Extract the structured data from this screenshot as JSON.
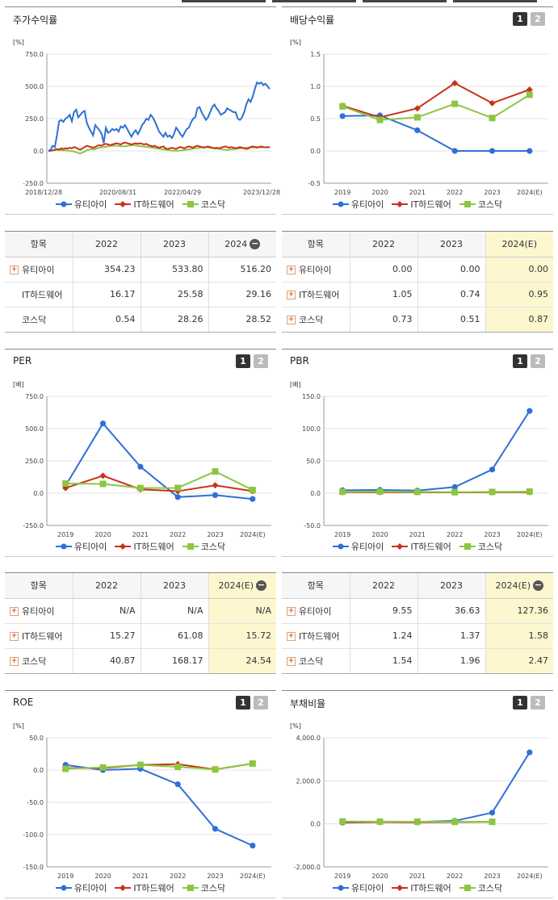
{
  "colors": {
    "series0": "#2f6fd8",
    "series1": "#c8321a",
    "series2": "#8cc63f"
  },
  "legend": [
    "유티아이",
    "IT하드웨어",
    "코스닥"
  ],
  "buttons": {
    "b1": "1",
    "b2": "2"
  },
  "panels": [
    {
      "id": "stock",
      "title": "주가수익률",
      "unit": "[%]",
      "has_buttons": false
    },
    {
      "id": "div",
      "title": "배당수익률",
      "unit": "[%]",
      "has_buttons": true
    },
    {
      "id": "per",
      "title": "PER",
      "unit": "[배]",
      "has_buttons": true
    },
    {
      "id": "pbr",
      "title": "PBR",
      "unit": "[배]",
      "has_buttons": true
    },
    {
      "id": "roe",
      "title": "ROE",
      "unit": "[%]",
      "has_buttons": true
    },
    {
      "id": "debt",
      "title": "부채비율",
      "unit": "[%]",
      "has_buttons": true
    }
  ],
  "chart_data": [
    {
      "id": "stock",
      "type": "line",
      "ylim": [
        -250,
        750
      ],
      "yticks": [
        "750.0",
        "500.0",
        "250.0",
        "0.0",
        "-250.0"
      ],
      "xticks": [
        "2018/12/28",
        "2020/08/31",
        "2022/04/29",
        "2023/12/28"
      ],
      "series": [
        {
          "name": "유티아이",
          "values": [
            0,
            10,
            40,
            30,
            120,
            230,
            240,
            225,
            250,
            260,
            280,
            230,
            300,
            320,
            260,
            280,
            300,
            310,
            220,
            180,
            150,
            120,
            200,
            180,
            160,
            130,
            60,
            180,
            140,
            150,
            170,
            160,
            170,
            150,
            190,
            180,
            200,
            170,
            140,
            110,
            140,
            160,
            130,
            160,
            200,
            220,
            250,
            240,
            280,
            260,
            230,
            190,
            150,
            130,
            110,
            140,
            110,
            120,
            100,
            130,
            180,
            160,
            130,
            110,
            140,
            170,
            180,
            220,
            250,
            260,
            330,
            340,
            300,
            270,
            240,
            260,
            300,
            340,
            360,
            330,
            310,
            280,
            290,
            300,
            330,
            320,
            310,
            300,
            300,
            250,
            240,
            260,
            300,
            360,
            400,
            380,
            420,
            480,
            530,
            520,
            530,
            510,
            520,
            500,
            480
          ]
        },
        {
          "name": "IT하드웨어",
          "values": [
            0,
            2,
            5,
            10,
            15,
            10,
            20,
            15,
            20,
            18,
            25,
            20,
            30,
            25,
            15,
            10,
            20,
            30,
            40,
            35,
            30,
            25,
            30,
            40,
            45,
            40,
            50,
            55,
            50,
            45,
            50,
            55,
            60,
            55,
            50,
            60,
            65,
            60,
            55,
            50,
            55,
            60,
            55,
            60,
            55,
            50,
            55,
            45,
            40,
            35,
            40,
            30,
            25,
            30,
            35,
            20,
            15,
            20,
            25,
            20,
            15,
            25,
            30,
            25,
            20,
            30,
            35,
            30,
            25,
            35,
            40,
            35,
            30,
            25,
            30,
            35,
            30,
            25,
            20,
            25,
            20,
            25,
            30,
            35,
            30,
            25,
            30,
            25,
            20,
            25,
            30,
            25,
            20,
            15,
            20,
            30,
            35,
            30,
            25,
            30,
            35,
            30,
            28,
            30,
            29
          ]
        },
        {
          "name": "코스닥",
          "values": [
            0,
            1,
            3,
            5,
            8,
            5,
            6,
            4,
            3,
            2,
            1,
            -2,
            -5,
            -10,
            -15,
            -20,
            -12,
            -5,
            5,
            10,
            15,
            12,
            15,
            20,
            25,
            28,
            30,
            32,
            35,
            38,
            40,
            42,
            40,
            38,
            36,
            35,
            37,
            39,
            41,
            43,
            45,
            42,
            40,
            38,
            36,
            34,
            32,
            30,
            28,
            25,
            22,
            20,
            18,
            15,
            12,
            10,
            8,
            5,
            3,
            2,
            1,
            2,
            3,
            5,
            8,
            10,
            12,
            15,
            18,
            20,
            22,
            25,
            28,
            30,
            28,
            26,
            24,
            22,
            20,
            18,
            16,
            14,
            12,
            10,
            8,
            10,
            12,
            14,
            16,
            18,
            20,
            22,
            24,
            25,
            26,
            27,
            28,
            29,
            30,
            29,
            28,
            28,
            28,
            28,
            28
          ]
        }
      ]
    },
    {
      "id": "div",
      "type": "line",
      "ylim": [
        -0.5,
        1.5
      ],
      "yticks": [
        "1.5",
        "1.0",
        "0.5",
        "0.0",
        "-0.5"
      ],
      "categories": [
        "2019",
        "2020",
        "2021",
        "2022",
        "2023",
        "2024(E)"
      ],
      "series": [
        {
          "name": "유티아이",
          "values": [
            0.54,
            0.55,
            0.32,
            0.0,
            0.0,
            0.0
          ]
        },
        {
          "name": "IT하드웨어",
          "values": [
            0.7,
            0.52,
            0.66,
            1.05,
            0.74,
            0.95
          ]
        },
        {
          "name": "코스닥",
          "values": [
            0.69,
            0.48,
            0.52,
            0.73,
            0.51,
            0.87
          ]
        }
      ]
    },
    {
      "id": "per",
      "type": "line",
      "ylim": [
        -250,
        750
      ],
      "yticks": [
        "750.0",
        "500.0",
        "250.0",
        "0.0",
        "-250.0"
      ],
      "categories": [
        "2019",
        "2020",
        "2021",
        "2022",
        "2023",
        "2024(E)"
      ],
      "series": [
        {
          "name": "유티아이",
          "values": [
            58,
            540,
            205,
            -30,
            -15,
            -45
          ]
        },
        {
          "name": "IT하드웨어",
          "values": [
            40,
            135,
            30,
            15.27,
            61.08,
            15.72
          ]
        },
        {
          "name": "코스닥",
          "values": [
            75,
            72,
            40,
            40.87,
            168.17,
            24.54
          ]
        }
      ]
    },
    {
      "id": "pbr",
      "type": "line",
      "ylim": [
        -50,
        150
      ],
      "yticks": [
        "150.0",
        "100.0",
        "50.0",
        "0.0",
        "-50.0"
      ],
      "categories": [
        "2019",
        "2020",
        "2021",
        "2022",
        "2023",
        "2024(E)"
      ],
      "series": [
        {
          "name": "유티아이",
          "values": [
            4.5,
            5,
            4,
            9.55,
            36.63,
            127.36
          ]
        },
        {
          "name": "IT하드웨어",
          "values": [
            1.5,
            1.6,
            1.4,
            1.24,
            1.37,
            1.58
          ]
        },
        {
          "name": "코스닥",
          "values": [
            2.2,
            2.5,
            2.0,
            1.54,
            1.96,
            2.47
          ]
        }
      ]
    },
    {
      "id": "roe",
      "type": "line",
      "ylim": [
        -150,
        50
      ],
      "yticks": [
        "50.0",
        "0.0",
        "-50.0",
        "-100.0",
        "-150.0"
      ],
      "categories": [
        "2019",
        "2020",
        "2021",
        "2022",
        "2023",
        "2024(E)"
      ],
      "series": [
        {
          "name": "유티아이",
          "values": [
            8,
            0,
            2,
            -22,
            -91,
            -117
          ]
        },
        {
          "name": "IT하드웨어",
          "values": [
            3,
            3,
            8,
            9,
            1,
            10
          ]
        },
        {
          "name": "코스닥",
          "values": [
            2,
            4,
            8,
            5,
            1,
            10
          ]
        }
      ]
    },
    {
      "id": "debt",
      "type": "line",
      "ylim": [
        -2000,
        4000
      ],
      "yticks": [
        "4,000.0",
        "2,000.0",
        "0.0",
        "-2,000.0"
      ],
      "categories": [
        "2019",
        "2020",
        "2021",
        "2022",
        "2023",
        "2024(E)"
      ],
      "series": [
        {
          "name": "유티아이",
          "values": [
            60,
            80,
            90,
            140,
            520,
            3320
          ]
        },
        {
          "name": "IT하드웨어",
          "values": [
            75,
            80,
            70,
            80,
            90,
            null
          ]
        },
        {
          "name": "코스닥",
          "values": [
            110,
            105,
            100,
            95,
            95,
            null
          ]
        }
      ]
    }
  ],
  "tables": [
    {
      "id": "stock_tbl",
      "header": [
        "항목",
        "2022",
        "2023",
        "2024"
      ],
      "minus": true,
      "highlight": false,
      "rows": [
        {
          "label": "유티아이",
          "plus": true,
          "values": [
            "354.23",
            "533.80",
            "516.20"
          ]
        },
        {
          "label": "IT하드웨어",
          "plus": false,
          "values": [
            "16.17",
            "25.58",
            "29.16"
          ]
        },
        {
          "label": "코스닥",
          "plus": false,
          "values": [
            "0.54",
            "28.26",
            "28.52"
          ]
        }
      ]
    },
    {
      "id": "div_tbl",
      "header": [
        "항목",
        "2022",
        "2023",
        "2024(E)"
      ],
      "minus": false,
      "highlight": true,
      "rows": [
        {
          "label": "유티아이",
          "plus": true,
          "values": [
            "0.00",
            "0.00",
            "0.00"
          ]
        },
        {
          "label": "IT하드웨어",
          "plus": true,
          "values": [
            "1.05",
            "0.74",
            "0.95"
          ]
        },
        {
          "label": "코스닥",
          "plus": true,
          "values": [
            "0.73",
            "0.51",
            "0.87"
          ]
        }
      ]
    },
    {
      "id": "per_tbl",
      "header": [
        "항목",
        "2022",
        "2023",
        "2024(E)"
      ],
      "minus": true,
      "highlight": true,
      "rows": [
        {
          "label": "유티아이",
          "plus": true,
          "values": [
            "N/A",
            "N/A",
            "N/A"
          ]
        },
        {
          "label": "IT하드웨어",
          "plus": true,
          "values": [
            "15.27",
            "61.08",
            "15.72"
          ]
        },
        {
          "label": "코스닥",
          "plus": true,
          "values": [
            "40.87",
            "168.17",
            "24.54"
          ]
        }
      ]
    },
    {
      "id": "pbr_tbl",
      "header": [
        "항목",
        "2022",
        "2023",
        "2024(E)"
      ],
      "minus": true,
      "highlight": true,
      "rows": [
        {
          "label": "유티아이",
          "plus": true,
          "values": [
            "9.55",
            "36.63",
            "127.36"
          ]
        },
        {
          "label": "IT하드웨어",
          "plus": true,
          "values": [
            "1.24",
            "1.37",
            "1.58"
          ]
        },
        {
          "label": "코스닥",
          "plus": true,
          "values": [
            "1.54",
            "1.96",
            "2.47"
          ]
        }
      ]
    }
  ]
}
